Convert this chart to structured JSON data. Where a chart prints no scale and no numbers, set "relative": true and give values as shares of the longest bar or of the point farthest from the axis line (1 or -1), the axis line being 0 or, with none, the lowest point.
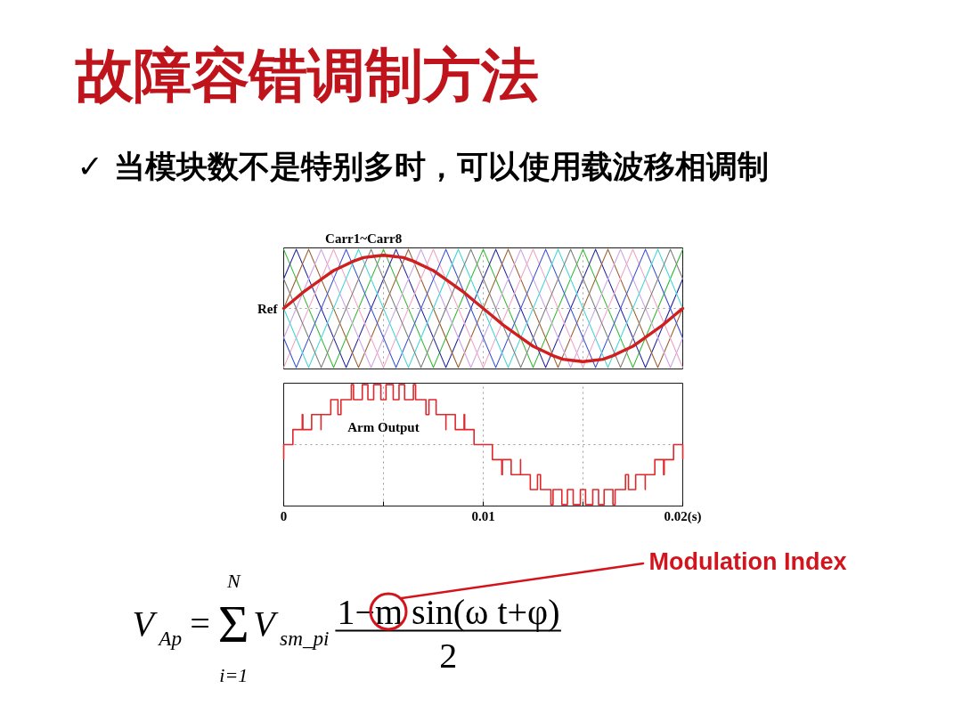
{
  "chart_data": [
    {
      "type": "line",
      "title": "故障容错调制方法",
      "subtitle": "✓ 当模块数不是特别多时，可以使用载波移相调制",
      "relative": true,
      "xlim": [
        0,
        0.02
      ],
      "xticks": [
        0,
        {
          "value": 0.005,
          "label": null
        },
        0.01,
        {
          "value": 0.015,
          "label": null
        },
        0.02
      ],
      "tick_labels": false,
      "grid": true,
      "annotations": [
        {
          "text": "Carr1~Carr8",
          "x": 0.004,
          "y": 1
        }
      ],
      "series": [
        {
          "color": "#33b833",
          "x": [
            0,
            0.0025,
            0.005,
            0.0075,
            0.01,
            0.0125,
            0.015,
            0.0175,
            0.02
          ],
          "values": [
            1,
            0,
            1,
            0,
            1,
            0,
            1,
            0,
            1
          ]
        },
        {
          "color": "#22229a",
          "x": [
            0,
            0.00063,
            0.00313,
            0.00563,
            0.00813,
            0.01063,
            0.01313,
            0.01563,
            0.01813,
            0.02
          ],
          "values": [
            0.75,
            1,
            0,
            1,
            0,
            1,
            0,
            1,
            0,
            0.75
          ]
        },
        {
          "color": "#9c5b2a",
          "x": [
            0,
            0.00125,
            0.00375,
            0.00625,
            0.00875,
            0.01125,
            0.01375,
            0.01625,
            0.01875,
            0.02
          ],
          "values": [
            0.5,
            1,
            0,
            1,
            0,
            1,
            0,
            1,
            0,
            0.5
          ]
        },
        {
          "color": "#c9a2e3",
          "x": [
            0,
            0.00188,
            0.00438,
            0.00688,
            0.00938,
            0.01188,
            0.01438,
            0.01688,
            0.01938,
            0.02
          ],
          "values": [
            0.25,
            1,
            0,
            1,
            0,
            1,
            0,
            1,
            0,
            0.25
          ]
        },
        {
          "color": "#f2a0c4",
          "x": [
            0,
            0.0025,
            0.005,
            0.0075,
            0.01,
            0.0125,
            0.015,
            0.0175,
            0.02
          ],
          "values": [
            0,
            1,
            0,
            1,
            0,
            1,
            0,
            1,
            0
          ]
        },
        {
          "color": "#3a4fd0",
          "x": [
            0,
            0.00063,
            0.00313,
            0.00563,
            0.00813,
            0.01063,
            0.01313,
            0.01563,
            0.01813,
            0.02
          ],
          "values": [
            0.25,
            0,
            1,
            0,
            1,
            0,
            1,
            0,
            1,
            0.25
          ]
        },
        {
          "color": "#3fd4d4",
          "x": [
            0,
            0.00125,
            0.00375,
            0.00625,
            0.00875,
            0.01125,
            0.01375,
            0.01625,
            0.01875,
            0.02
          ],
          "values": [
            0.5,
            0,
            1,
            0,
            1,
            0,
            1,
            0,
            1,
            0.5
          ]
        },
        {
          "color": "#7a7a7a",
          "x": [
            0,
            0.00188,
            0.00438,
            0.00688,
            0.00938,
            0.01188,
            0.01438,
            0.01688,
            0.01938,
            0.02
          ],
          "values": [
            0.75,
            0,
            1,
            0,
            1,
            0,
            1,
            0,
            1,
            0.75
          ]
        },
        {
          "name": "Ref",
          "color": "#d01f1f",
          "x": [
            0,
            0.0005,
            0.001,
            0.0015,
            0.002,
            0.0025,
            0.003,
            0.0035,
            0.004,
            0.0045,
            0.005,
            0.0055,
            0.006,
            0.0065,
            0.007,
            0.0075,
            0.008,
            0.0085,
            0.009,
            0.0095,
            0.01,
            0.0105,
            0.011,
            0.0115,
            0.012,
            0.0125,
            0.013,
            0.0135,
            0.014,
            0.0145,
            0.015,
            0.0155,
            0.016,
            0.0165,
            0.017,
            0.0175,
            0.018,
            0.0185,
            0.019,
            0.0195,
            0.02
          ],
          "values": [
            0.5,
            0.57,
            0.64,
            0.7,
            0.76,
            0.82,
            0.86,
            0.9,
            0.93,
            0.94,
            0.95,
            0.94,
            0.93,
            0.9,
            0.86,
            0.82,
            0.76,
            0.7,
            0.64,
            0.57,
            0.5,
            0.43,
            0.36,
            0.3,
            0.24,
            0.18,
            0.14,
            0.1,
            0.07,
            0.06,
            0.05,
            0.06,
            0.07,
            0.1,
            0.14,
            0.18,
            0.24,
            0.3,
            0.36,
            0.43,
            0.5
          ]
        }
      ]
    },
    {
      "type": "step",
      "relative": true,
      "xlim": [
        0,
        0.02
      ],
      "xticks": [
        0,
        {
          "value": 0.005,
          "label": null
        },
        0.01,
        {
          "value": 0.015,
          "label": null
        },
        {
          "value": 0.02,
          "label": "0.02(s)"
        }
      ],
      "grid": true,
      "x": [
        0,
        0,
        0.00046,
        0.00093,
        0.00096,
        0.0014,
        0.00187,
        0.00187,
        0.00236,
        0.00272,
        0.00287,
        0.00339,
        0.0035,
        0.00394,
        0.00422,
        0.00451,
        0.00487,
        0.00513,
        0.00549,
        0.00578,
        0.00606,
        0.0065,
        0.00661,
        0.00713,
        0.00728,
        0.00764,
        0.00813,
        0.00813,
        0.0086,
        0.00904,
        0.00907,
        0.00954,
        0.01046,
        0.01093,
        0.01096,
        0.0114,
        0.01187,
        0.01187,
        0.01236,
        0.01272,
        0.01287,
        0.01339,
        0.0135,
        0.01394,
        0.01422,
        0.01451,
        0.01487,
        0.01513,
        0.01549,
        0.01578,
        0.01606,
        0.0165,
        0.01661,
        0.01713,
        0.01728,
        0.01764,
        0.01812,
        0.01812,
        0.0186,
        0.01904,
        0.01907,
        0.01954,
        0.02
      ],
      "series": [
        {
          "name": "Arm Output",
          "color": "#e0282c",
          "values": [
            0.375,
            0.5,
            0.625,
            0.75,
            0.625,
            0.75,
            0.625,
            0.75,
            0.875,
            0.75,
            0.875,
            1,
            0.875,
            1,
            0.875,
            1,
            0.875,
            1,
            0.875,
            1,
            0.875,
            1,
            0.875,
            0.75,
            0.875,
            0.75,
            0.625,
            0.75,
            0.625,
            0.75,
            0.625,
            0.5,
            0.375,
            0.25,
            0.375,
            0.25,
            0.375,
            0.25,
            0.125,
            0.25,
            0.125,
            0,
            0.125,
            0,
            0.125,
            0,
            0.125,
            0,
            0.125,
            0,
            0.125,
            0,
            0.125,
            0.25,
            0.125,
            0.25,
            0.125,
            0.25,
            0.375,
            0.25,
            0.375,
            0.5,
            0.375
          ]
        }
      ],
      "annotations": [
        "V$_{Ap}$",
        "=",
        "N",
        "Σ",
        "i=1",
        "V$_{sm_pi}$",
        "1−m sin(ω t+φ)",
        "2",
        "Modulation Index"
      ]
    }
  ]
}
